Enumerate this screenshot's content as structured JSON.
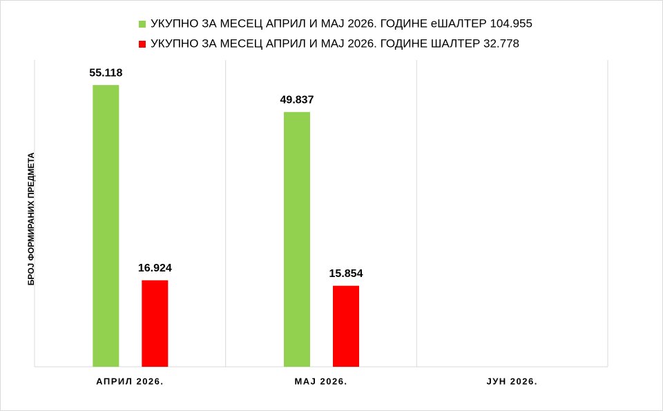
{
  "chart_data": {
    "type": "bar",
    "categories": [
      "АПРИЛ 2026.",
      "МАЈ 2026.",
      "ЈУН 2026."
    ],
    "series": [
      {
        "name": "УКУПНО ЗА МЕСЕЦ АПРИЛ И МАЈ 2026. ГОДИНЕ еШАЛТЕР 104.955",
        "color": "#92d050",
        "values": [
          55118,
          49837,
          null
        ],
        "value_labels": [
          "55.118",
          "49.837",
          null
        ]
      },
      {
        "name": "УКУПНО ЗА МЕСЕЦ АПРИЛ И МАЈ 2026. ГОДИНЕ ШАЛТЕР 32.778",
        "color": "#ff0000",
        "values": [
          16924,
          15854,
          null
        ],
        "value_labels": [
          "16.924",
          "15.854",
          null
        ]
      }
    ],
    "y_label": "БРОЈ ФОРМИРАНИХ ПРЕДМЕТА",
    "ylim": [
      0,
      60000
    ]
  }
}
